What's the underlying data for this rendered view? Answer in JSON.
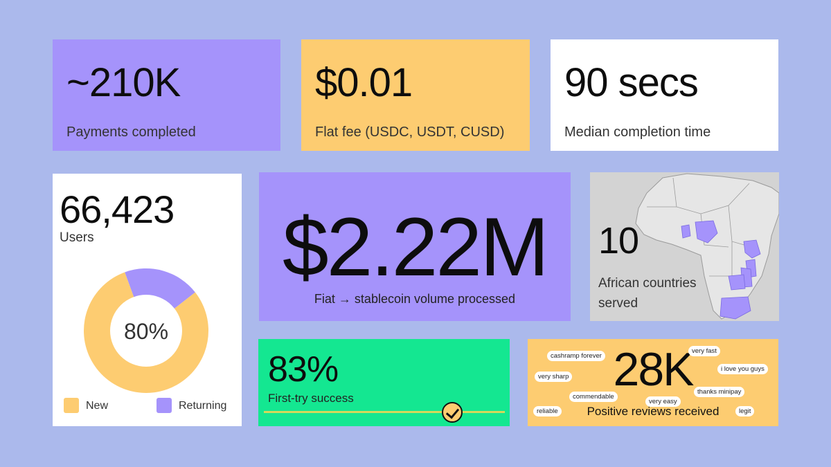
{
  "cards": {
    "payments": {
      "value": "~210K",
      "label": "Payments completed"
    },
    "fee": {
      "value": "$0.01",
      "label": "Flat fee (USDC, USDT, CUSD)"
    },
    "time": {
      "value": "90 secs",
      "label": "Median completion time"
    },
    "users": {
      "value": "66,423",
      "label": "Users",
      "donut_center": "80%",
      "legend": [
        {
          "label": "New",
          "color": "#fdcc71"
        },
        {
          "label": "Returning",
          "color": "#a593fb"
        }
      ]
    },
    "volume": {
      "value": "$2.22M",
      "label": "Fiat → stablecoin volume processed"
    },
    "countries": {
      "value": "10",
      "label": "African countries served"
    },
    "success": {
      "value": "83%",
      "label": "First-try success"
    },
    "reviews": {
      "value": "28K",
      "label": "Positive reviews received",
      "tags": [
        "cashramp forever",
        "very fast",
        "i love you guys",
        "very sharp",
        "thanks minipay",
        "commendable",
        "very easy",
        "reliable",
        "legit"
      ]
    }
  },
  "chart_data": {
    "type": "pie",
    "categories": [
      "New",
      "Returning"
    ],
    "values": [
      80,
      20
    ],
    "center_label": "80%"
  },
  "colors": {
    "background": "#abb9ec",
    "purple": "#a593fb",
    "yellow": "#fdcc71",
    "green": "#14e791",
    "white": "#ffffff",
    "map_grey": "#d3d3d3"
  }
}
